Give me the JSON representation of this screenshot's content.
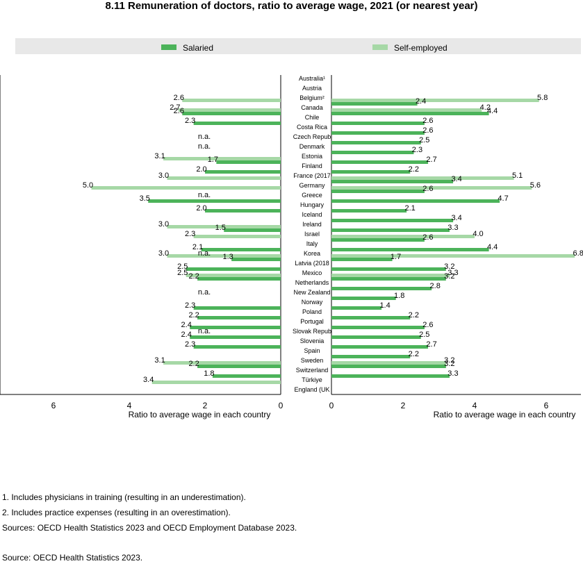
{
  "chart_data": {
    "type": "bar",
    "title": "8.11 Remuneration of doctors, ratio to average wage, 2021 (or nearest year)",
    "orientation": "horizontal",
    "legend": {
      "position": "top",
      "entries": [
        "Salaried",
        "Self-employed"
      ]
    },
    "colors": {
      "salaried": "#4cb35a",
      "self_employed": "#a6d8a6",
      "legend_bg": "#e8e8e8",
      "axis": "#000000"
    },
    "na_label": "n.a.",
    "categories": [
      "Australia¹",
      "Austria",
      "Belgium²",
      "Canada",
      "Chile",
      "Costa Rica",
      "Czech Repub",
      "Denmark",
      "Estonia",
      "Finland",
      "France (2017",
      "Germany",
      "Greece",
      "Hungary",
      "Iceland",
      "Ireland",
      "Israel",
      "Italy",
      "Korea",
      "Latvia (2018",
      "Mexico",
      "Netherlands",
      "New Zealand",
      "Norway",
      "Poland",
      "Portugal",
      "Slovak Repub",
      "Slovenia",
      "Spain",
      "Sweden",
      "Switzerland",
      "Türkiye",
      "England (UK"
    ],
    "panels": [
      {
        "side": "left",
        "xlabel": "Ratio to average wage in each country",
        "xlim": [
          0,
          6.9
        ],
        "ticks": [
          6,
          4,
          2,
          0
        ],
        "reversed": true,
        "na_rows": [
          6,
          7,
          12,
          18,
          22,
          26
        ],
        "series": [
          {
            "name": "Salaried",
            "values": [
              null,
              null,
              null,
              2.6,
              2.3,
              null,
              null,
              null,
              1.7,
              2.0,
              null,
              null,
              3.5,
              2.0,
              null,
              1.5,
              null,
              2.1,
              1.3,
              2.5,
              2.2,
              null,
              null,
              2.3,
              2.2,
              2.4,
              2.4,
              2.3,
              null,
              2.2,
              1.8,
              null,
              null
            ]
          },
          {
            "name": "Self-employed",
            "values": [
              null,
              null,
              2.6,
              2.7,
              null,
              null,
              null,
              null,
              3.1,
              null,
              3.0,
              5.0,
              null,
              null,
              null,
              3.0,
              2.3,
              null,
              3.0,
              null,
              2.5,
              null,
              null,
              null,
              null,
              null,
              null,
              null,
              null,
              3.1,
              null,
              3.4,
              null
            ]
          }
        ]
      },
      {
        "side": "right",
        "xlabel": "Ratio to average wage in each country",
        "xlim": [
          0,
          7.0
        ],
        "ticks": [
          0,
          2,
          4,
          6
        ],
        "reversed": false,
        "na_rows": [],
        "series": [
          {
            "name": "Salaried",
            "values": [
              null,
              null,
              2.4,
              4.4,
              2.6,
              2.6,
              2.5,
              2.3,
              2.7,
              2.2,
              3.4,
              2.6,
              4.7,
              2.1,
              3.4,
              3.3,
              2.6,
              4.4,
              1.7,
              3.2,
              3.2,
              2.8,
              1.8,
              1.4,
              2.2,
              2.6,
              2.5,
              2.7,
              2.2,
              3.2,
              3.3,
              null,
              null
            ]
          },
          {
            "name": "Self-employed",
            "values": [
              null,
              null,
              5.8,
              4.2,
              null,
              null,
              null,
              null,
              null,
              null,
              5.1,
              5.6,
              null,
              null,
              null,
              null,
              4.0,
              null,
              6.8,
              null,
              3.3,
              null,
              null,
              null,
              null,
              null,
              null,
              null,
              null,
              3.2,
              null,
              null,
              null
            ]
          }
        ]
      }
    ]
  },
  "footnotes": [
    "1. Includes physicians in training (resulting in an underestimation).",
    "2. Includes practice expenses (resulting in an overestimation).",
    "Sources: OECD Health Statistics 2023 and OECD Employment Database 2023."
  ],
  "source": "Source: OECD Health Statistics 2023."
}
